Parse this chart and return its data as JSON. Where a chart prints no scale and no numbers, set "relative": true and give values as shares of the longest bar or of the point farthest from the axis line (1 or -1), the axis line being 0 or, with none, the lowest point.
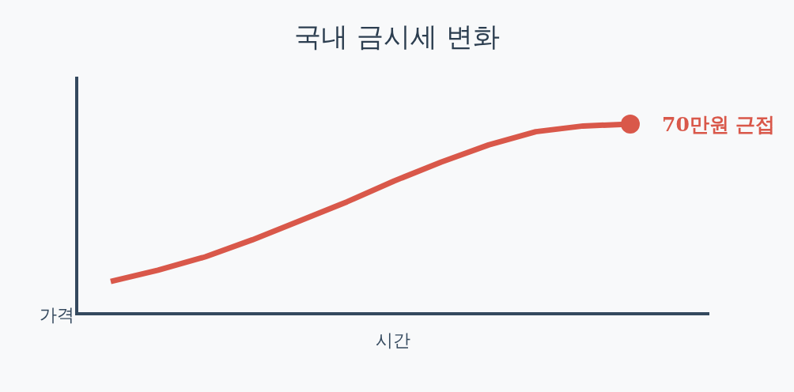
{
  "chart_data": {
    "type": "line",
    "title": "국내 금시세 변화",
    "xlabel": "시간",
    "ylabel": "가격",
    "relative": true,
    "categories": [
      null,
      null,
      null,
      null,
      null,
      null,
      null,
      null,
      null,
      null,
      null,
      null
    ],
    "series": [
      {
        "color": "#d9584a",
        "values": [
          0.17,
          0.23,
          0.3,
          0.39,
          0.49,
          0.59,
          0.7,
          0.8,
          0.89,
          0.96,
          0.99,
          1
        ]
      }
    ],
    "annotations": [
      "70만원 근접"
    ]
  }
}
